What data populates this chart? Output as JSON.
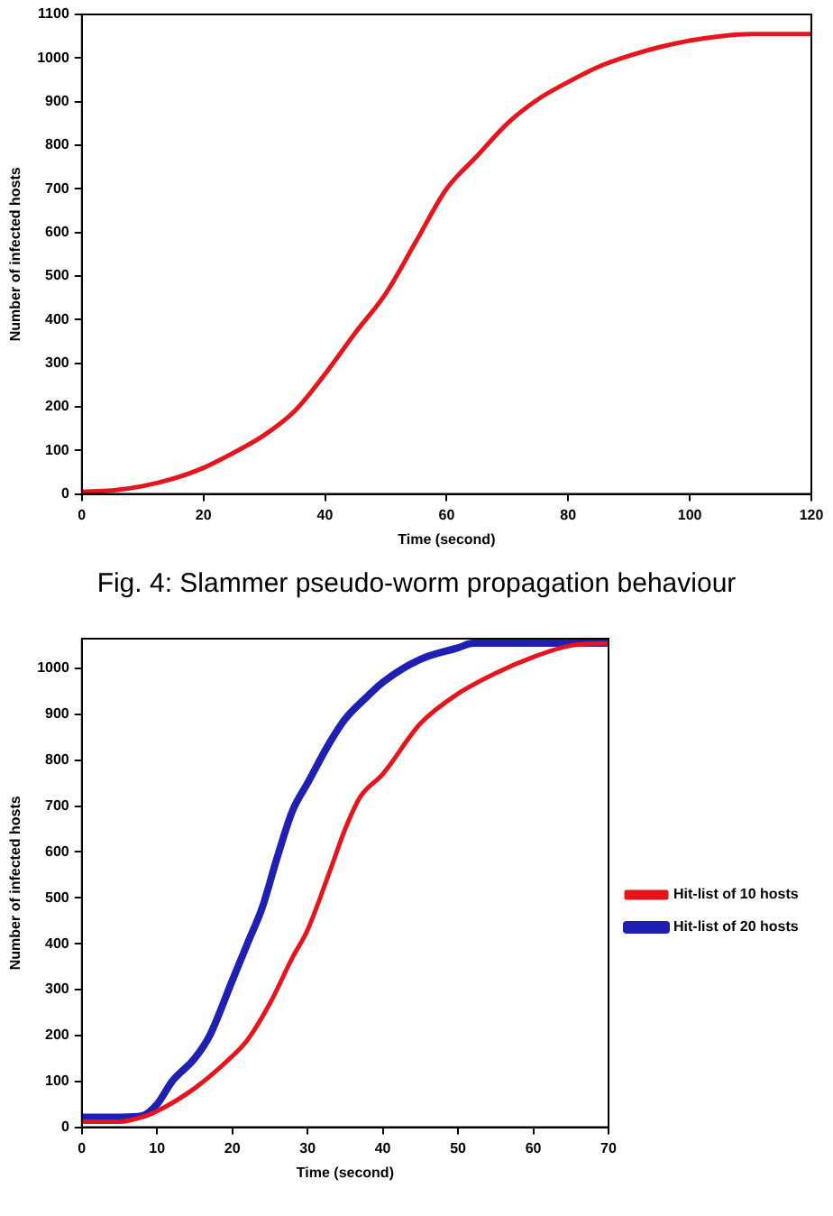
{
  "chart_data": [
    {
      "type": "line",
      "xlabel": "Time (second)",
      "ylabel": "Number of infected hosts",
      "xlim": [
        0,
        120
      ],
      "xticks": [
        0,
        20,
        40,
        60,
        80,
        100,
        120
      ],
      "ylim": [
        0,
        1100
      ],
      "yticks": [
        0,
        100,
        200,
        300,
        400,
        500,
        600,
        700,
        800,
        900,
        1000,
        1100
      ],
      "grid": false,
      "legend": false,
      "marker": "none",
      "line_style": "solid",
      "x": [
        0,
        5,
        10,
        15,
        20,
        25,
        30,
        35,
        40,
        45,
        50,
        55,
        60,
        65,
        70,
        75,
        80,
        85,
        90,
        95,
        100,
        105,
        110,
        120
      ],
      "series": [
        {
          "color": "#e8141c",
          "values": [
            5,
            8,
            18,
            35,
            60,
            95,
            135,
            190,
            275,
            370,
            460,
            580,
            700,
            775,
            850,
            905,
            945,
            980,
            1005,
            1025,
            1040,
            1050,
            1055,
            1055
          ]
        }
      ],
      "annotations": [
        "Fig. 4: Slammer pseudo-worm propagation behaviour"
      ]
    },
    {
      "type": "line",
      "xlabel": "Time (second)",
      "ylabel": "Number of infected hosts",
      "xlim": [
        0,
        70
      ],
      "xticks": [
        0,
        10,
        20,
        30,
        40,
        50,
        60,
        70
      ],
      "ylim": [
        0,
        1065
      ],
      "yticks": [
        0,
        100,
        200,
        300,
        400,
        500,
        600,
        700,
        800,
        900,
        1000
      ],
      "grid": false,
      "legend": "right",
      "marker": "none",
      "line_style": "solid",
      "series": [
        {
          "name": "Hit-list of 10 hosts",
          "color": "#e8141c",
          "x": [
            0,
            5,
            8,
            10,
            15,
            20,
            22,
            25,
            28,
            30,
            33,
            35,
            37,
            40,
            45,
            50,
            55,
            60,
            65,
            70
          ],
          "values": [
            12,
            12,
            22,
            35,
            85,
            155,
            190,
            270,
            370,
            430,
            560,
            650,
            720,
            770,
            880,
            945,
            990,
            1025,
            1050,
            1055
          ]
        },
        {
          "name": "Hit-list of 20 hosts",
          "color": "#1f1fb4",
          "x": [
            0,
            5,
            8,
            10,
            12,
            15,
            17,
            20,
            22,
            24,
            26,
            28,
            30,
            33,
            35,
            38,
            40,
            45,
            50,
            52,
            70
          ],
          "values": [
            22,
            22,
            25,
            50,
            100,
            150,
            200,
            320,
            400,
            480,
            590,
            690,
            750,
            840,
            890,
            940,
            970,
            1020,
            1045,
            1055,
            1055
          ]
        }
      ]
    }
  ]
}
